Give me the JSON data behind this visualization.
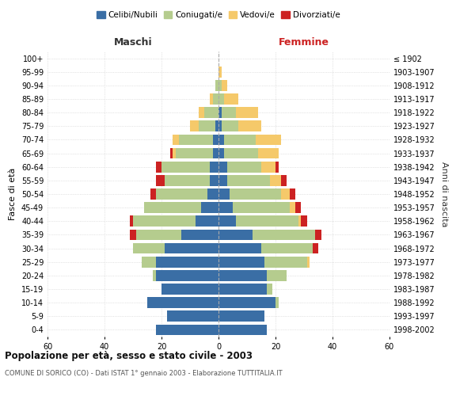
{
  "age_groups": [
    "0-4",
    "5-9",
    "10-14",
    "15-19",
    "20-24",
    "25-29",
    "30-34",
    "35-39",
    "40-44",
    "45-49",
    "50-54",
    "55-59",
    "60-64",
    "65-69",
    "70-74",
    "75-79",
    "80-84",
    "85-89",
    "90-94",
    "95-99",
    "100+"
  ],
  "birth_years": [
    "1998-2002",
    "1993-1997",
    "1988-1992",
    "1983-1987",
    "1978-1982",
    "1973-1977",
    "1968-1972",
    "1963-1967",
    "1958-1962",
    "1953-1957",
    "1948-1952",
    "1943-1947",
    "1938-1942",
    "1933-1937",
    "1928-1932",
    "1923-1927",
    "1918-1922",
    "1913-1917",
    "1908-1912",
    "1903-1907",
    "≤ 1902"
  ],
  "males": {
    "celibi": [
      22,
      18,
      25,
      20,
      22,
      22,
      19,
      13,
      8,
      6,
      4,
      3,
      3,
      2,
      2,
      1,
      0,
      0,
      0,
      0,
      0
    ],
    "coniugati": [
      0,
      0,
      0,
      0,
      1,
      5,
      11,
      16,
      22,
      20,
      18,
      16,
      17,
      13,
      12,
      6,
      5,
      2,
      1,
      0,
      0
    ],
    "vedovi": [
      0,
      0,
      0,
      0,
      0,
      0,
      0,
      0,
      0,
      0,
      0,
      0,
      0,
      1,
      2,
      3,
      2,
      1,
      0,
      0,
      0
    ],
    "divorziati": [
      0,
      0,
      0,
      0,
      0,
      0,
      0,
      2,
      1,
      0,
      2,
      3,
      2,
      1,
      0,
      0,
      0,
      0,
      0,
      0,
      0
    ]
  },
  "females": {
    "nubili": [
      17,
      16,
      20,
      17,
      17,
      16,
      15,
      12,
      6,
      5,
      4,
      3,
      3,
      2,
      2,
      1,
      1,
      0,
      0,
      0,
      0
    ],
    "coniugate": [
      0,
      0,
      1,
      2,
      7,
      15,
      18,
      22,
      22,
      20,
      18,
      15,
      12,
      12,
      11,
      6,
      5,
      2,
      1,
      0,
      0
    ],
    "vedove": [
      0,
      0,
      0,
      0,
      0,
      1,
      0,
      0,
      1,
      2,
      3,
      4,
      5,
      7,
      9,
      8,
      8,
      5,
      2,
      1,
      0
    ],
    "divorziate": [
      0,
      0,
      0,
      0,
      0,
      0,
      2,
      2,
      2,
      2,
      2,
      2,
      1,
      0,
      0,
      0,
      0,
      0,
      0,
      0,
      0
    ]
  },
  "colors": {
    "celibi": "#3a6ea5",
    "coniugati": "#b5cc8e",
    "vedovi": "#f5c96a",
    "divorziati": "#cc2222"
  },
  "xlim": 60,
  "title": "Popolazione per età, sesso e stato civile - 2003",
  "subtitle": "COMUNE DI SORICO (CO) - Dati ISTAT 1° gennaio 2003 - Elaborazione TUTTITALIA.IT",
  "ylabel_left": "Fasce di età",
  "ylabel_right": "Anni di nascita",
  "xlabel_left": "Maschi",
  "xlabel_right": "Femmine",
  "background_color": "#f5f5f0"
}
